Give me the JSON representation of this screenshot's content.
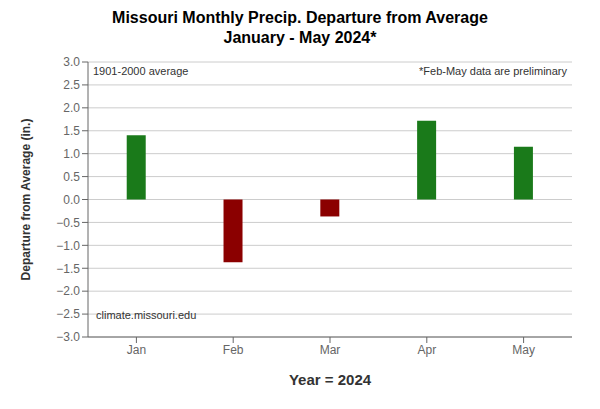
{
  "chart_data": {
    "type": "bar",
    "title": "Missouri Monthly Precip. Departure from Average",
    "subtitle": "January - May 2024*",
    "x_label": "Year = 2024",
    "y_label": "Departure from Average (in.)",
    "categories": [
      "Jan",
      "Feb",
      "Mar",
      "Apr",
      "May"
    ],
    "values": [
      1.4,
      -1.37,
      -0.37,
      1.72,
      1.15
    ],
    "colors": [
      "#1a7a1a",
      "#8b0000",
      "#8b0000",
      "#1a7a1a",
      "#1a7a1a"
    ],
    "ylim": [
      -3.0,
      3.0
    ],
    "yticks": [
      {
        "value": -3.0,
        "label": "−3.0"
      },
      {
        "value": -2.5,
        "label": "−2.5"
      },
      {
        "value": -2.0,
        "label": "−2.0"
      },
      {
        "value": -1.5,
        "label": "−1.5"
      },
      {
        "value": -1.0,
        "label": "−1.0"
      },
      {
        "value": -0.5,
        "label": "−0.5"
      },
      {
        "value": 0.0,
        "label": "0.0"
      },
      0.5,
      {
        "value": 1.0,
        "label": "1.0"
      },
      1.5,
      {
        "value": 2.0,
        "label": "2.0"
      },
      2.5,
      {
        "value": 3.0,
        "label": "3.0"
      }
    ],
    "grid": true,
    "annotations": [
      "1901-2000 average",
      "*Feb-May data are preliminary",
      "climate.missouri.edu"
    ]
  }
}
